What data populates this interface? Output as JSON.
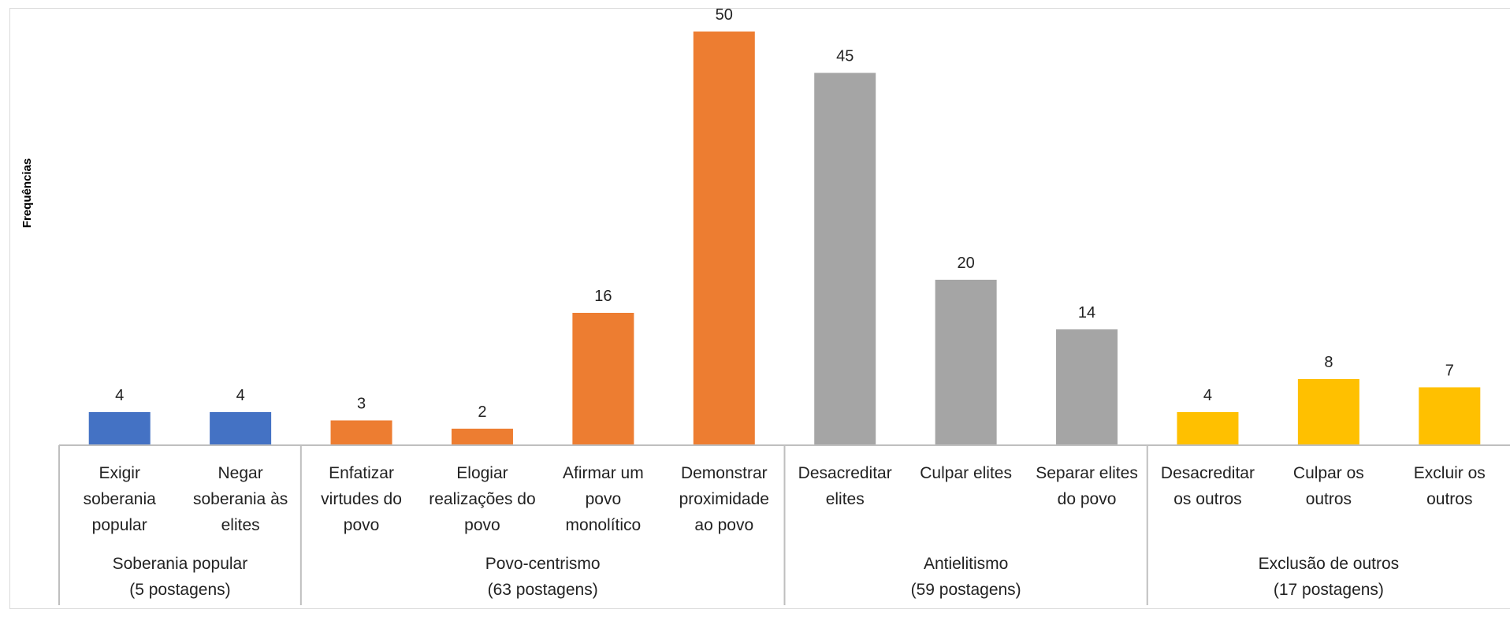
{
  "chart_data": {
    "type": "bar",
    "ylabel": "Frequências",
    "ylim": [
      0,
      50
    ],
    "categories": [
      "Exigir soberania popular",
      "Negar soberania às elites",
      "Enfatizar virtudes do povo",
      "Elogiar realizações do povo",
      "Afirmar um povo monolítico",
      "Demonstrar proximidade ao povo",
      "Desacreditar elites",
      "Culpar elites",
      "Separar elites do povo",
      "Desacreditar os outros",
      "Culpar os outros",
      "Excluir os outros"
    ],
    "category_lines": [
      [
        "Exigir",
        "soberania",
        "popular"
      ],
      [
        "Negar",
        "soberania às",
        "elites"
      ],
      [
        "Enfatizar",
        "virtudes do",
        "povo"
      ],
      [
        "Elogiar",
        "realizações do",
        "povo"
      ],
      [
        "Afirmar um",
        "povo",
        "monolítico"
      ],
      [
        "Demonstrar",
        "proximidade",
        "ao povo"
      ],
      [
        "Desacreditar",
        "elites"
      ],
      [
        "Culpar elites"
      ],
      [
        "Separar elites",
        "do povo"
      ],
      [
        "Desacreditar",
        "os outros"
      ],
      [
        "Culpar os",
        "outros"
      ],
      [
        "Excluir os",
        "outros"
      ]
    ],
    "values": [
      4,
      4,
      3,
      2,
      16,
      50,
      45,
      20,
      14,
      4,
      8,
      7
    ],
    "colors": [
      "#4472c4",
      "#4472c4",
      "#ed7d31",
      "#ed7d31",
      "#ed7d31",
      "#ed7d31",
      "#a5a5a5",
      "#a5a5a5",
      "#a5a5a5",
      "#ffc000",
      "#ffc000",
      "#ffc000"
    ],
    "groups": [
      {
        "label": "Soberania popular",
        "sublabel": "(5 postagens)",
        "count": 2
      },
      {
        "label": "Povo-centrismo",
        "sublabel": "(63 postagens)",
        "count": 4
      },
      {
        "label": "Antielitismo",
        "sublabel": "(59 postagens)",
        "count": 3
      },
      {
        "label": "Exclusão de outros",
        "sublabel": "(17 postagens)",
        "count": 3
      }
    ],
    "grid": false,
    "data_labels": true
  }
}
